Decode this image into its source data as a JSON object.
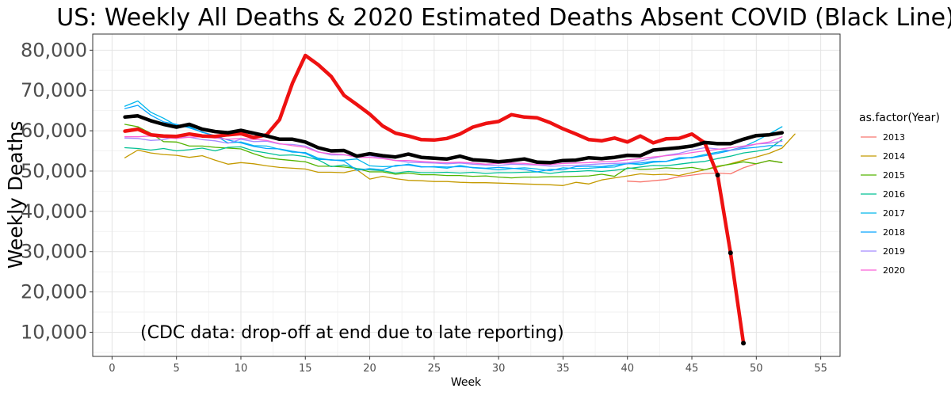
{
  "chart_data": {
    "type": "line",
    "title": "US: Weekly All Deaths & 2020 Estimated Deaths Absent COVID (Black Line)",
    "xlabel": "Week",
    "ylabel": "Weekly Deaths",
    "xlim": [
      -1.5,
      56.5
    ],
    "ylim": [
      4000,
      84000
    ],
    "x_ticks": [
      0,
      5,
      10,
      15,
      20,
      25,
      30,
      35,
      40,
      45,
      50,
      55
    ],
    "y_ticks": [
      10000,
      20000,
      30000,
      40000,
      50000,
      60000,
      70000,
      80000
    ],
    "y_tick_labels": [
      "10,000",
      "20,000",
      "30,000",
      "40,000",
      "50,000",
      "60,000",
      "70,000",
      "80,000"
    ],
    "grid": true,
    "legend": {
      "title": "as.factor(Year)",
      "position": "right"
    },
    "annotation": "(CDC data: drop-off at end due to late reporting)",
    "series": [
      {
        "name": "2013",
        "color": "#F8766D",
        "width": 1.3,
        "x": [
          40,
          41,
          42,
          43,
          44,
          45,
          46,
          47,
          48,
          49,
          50,
          51,
          52
        ],
        "y": [
          47500,
          47300,
          47600,
          47900,
          48600,
          49000,
          49400,
          49500,
          49300,
          50800,
          51800,
          52600,
          52100
        ]
      },
      {
        "name": "2014",
        "color": "#C49A00",
        "width": 1.3,
        "x": [
          1,
          2,
          3,
          4,
          5,
          6,
          7,
          8,
          9,
          10,
          11,
          12,
          13,
          14,
          15,
          16,
          17,
          18,
          19,
          20,
          21,
          22,
          23,
          24,
          25,
          26,
          27,
          28,
          29,
          30,
          31,
          32,
          33,
          34,
          35,
          36,
          37,
          38,
          39,
          40,
          41,
          42,
          43,
          44,
          45,
          46,
          47,
          48,
          49,
          50,
          51,
          52,
          53
        ],
        "y": [
          53300,
          55200,
          54500,
          54100,
          53900,
          53400,
          53800,
          52700,
          51700,
          52100,
          51800,
          51300,
          50900,
          50700,
          50500,
          49700,
          49700,
          49600,
          50300,
          48000,
          48700,
          48100,
          47700,
          47600,
          47400,
          47400,
          47200,
          47100,
          47100,
          47000,
          46900,
          46800,
          46700,
          46600,
          46400,
          47200,
          46800,
          47800,
          48300,
          48800,
          49300,
          49100,
          49200,
          48900,
          49600,
          50300,
          51000,
          51800,
          52700,
          53500,
          54400,
          55700,
          59200
        ]
      },
      {
        "name": "2015",
        "color": "#53B400",
        "width": 1.3,
        "x": [
          1,
          2,
          3,
          4,
          5,
          6,
          7,
          8,
          9,
          10,
          11,
          12,
          13,
          14,
          15,
          16,
          17,
          18,
          19,
          20,
          21,
          22,
          23,
          24,
          25,
          26,
          27,
          28,
          29,
          30,
          31,
          32,
          33,
          34,
          35,
          36,
          37,
          38,
          39,
          40,
          41,
          42,
          43,
          44,
          45,
          46,
          47,
          48,
          49,
          50,
          51,
          52
        ],
        "y": [
          61600,
          61000,
          59400,
          57300,
          57200,
          56200,
          56200,
          55900,
          55700,
          55500,
          54300,
          53300,
          52900,
          52600,
          52300,
          51200,
          51200,
          51000,
          50600,
          49800,
          49800,
          49200,
          49500,
          49100,
          49100,
          48900,
          48900,
          48700,
          48800,
          48500,
          48300,
          48500,
          48500,
          48600,
          48600,
          48700,
          48800,
          49200,
          48700,
          50800,
          50400,
          50500,
          50800,
          50600,
          50900,
          50300,
          51200,
          51700,
          52300,
          51800,
          52600,
          52100
        ]
      },
      {
        "name": "2016",
        "color": "#00C094",
        "width": 1.3,
        "x": [
          1,
          2,
          3,
          4,
          5,
          6,
          7,
          8,
          9,
          10,
          11,
          12,
          13,
          14,
          15,
          16,
          17,
          18,
          19,
          20,
          21,
          22,
          23,
          24,
          25,
          26,
          27,
          28,
          29,
          30,
          31,
          32,
          33,
          34,
          35,
          36,
          37,
          38,
          39,
          40,
          41,
          42,
          43,
          44,
          45,
          46,
          47,
          48,
          49,
          50,
          51,
          52
        ],
        "y": [
          55800,
          55600,
          55200,
          55600,
          55000,
          55300,
          55700,
          55000,
          55900,
          56000,
          55000,
          54500,
          53900,
          54000,
          53600,
          52800,
          51100,
          51500,
          50600,
          50300,
          50100,
          49500,
          49900,
          49600,
          49600,
          49700,
          49500,
          49700,
          49400,
          49600,
          49600,
          49700,
          49800,
          49400,
          49800,
          49900,
          50100,
          49900,
          50200,
          50600,
          51000,
          51400,
          51300,
          51700,
          52100,
          52400,
          53100,
          53700,
          54500,
          54900,
          55500,
          57800
        ]
      },
      {
        "name": "2017",
        "color": "#00B6EB",
        "width": 1.3,
        "x": [
          1,
          2,
          3,
          4,
          5,
          6,
          7,
          8,
          9,
          10,
          11,
          12,
          13,
          14,
          15,
          16,
          17,
          18,
          19,
          20,
          21,
          22,
          23,
          24,
          25,
          26,
          27,
          28,
          29,
          30,
          31,
          32,
          33,
          34,
          35,
          36,
          37,
          38,
          39,
          40,
          41,
          42,
          43,
          44,
          45,
          46,
          47,
          48,
          49,
          50,
          51,
          52
        ],
        "y": [
          66100,
          67400,
          64600,
          63100,
          61300,
          61000,
          59600,
          58800,
          57000,
          57200,
          56300,
          56200,
          55400,
          54700,
          54600,
          53200,
          52700,
          52700,
          53000,
          51300,
          51100,
          51200,
          51700,
          51100,
          51000,
          50700,
          51400,
          50800,
          50600,
          50300,
          50600,
          50800,
          50500,
          50100,
          50800,
          50600,
          50700,
          50900,
          51000,
          51900,
          51600,
          52200,
          52400,
          53000,
          53400,
          54100,
          54700,
          55200,
          56000,
          57500,
          59200,
          61000
        ]
      },
      {
        "name": "2018",
        "color": "#06A4FF",
        "width": 1.3,
        "x": [
          1,
          2,
          3,
          4,
          5,
          6,
          7,
          8,
          9,
          10,
          11,
          12,
          13,
          14,
          15,
          16,
          17,
          18,
          19,
          20,
          21,
          22,
          23,
          24,
          25,
          26,
          27,
          28,
          29,
          30,
          31,
          32,
          33,
          34,
          35,
          36,
          37,
          38,
          39,
          40,
          41,
          42,
          43,
          44,
          45,
          46,
          47,
          48,
          49,
          50,
          51,
          52
        ],
        "y": [
          65500,
          66300,
          63900,
          62200,
          61600,
          60700,
          59700,
          58700,
          57700,
          57000,
          56100,
          55600,
          55500,
          54900,
          54400,
          52900,
          52800,
          52500,
          50200,
          50600,
          50300,
          51400,
          51500,
          51000,
          51100,
          51000,
          51100,
          50900,
          50700,
          50900,
          50700,
          50400,
          49800,
          50400,
          50300,
          51100,
          51200,
          51100,
          51500,
          51800,
          52000,
          52400,
          52400,
          53300,
          53300,
          53800,
          54400,
          55100,
          55600,
          55900,
          56300,
          56300
        ]
      },
      {
        "name": "2019",
        "color": "#A58AFF",
        "width": 1.3,
        "x": [
          1,
          2,
          3,
          4,
          5,
          6,
          7,
          8,
          9,
          10,
          11,
          12,
          13,
          14,
          15,
          16,
          17,
          18,
          19,
          20,
          21,
          22,
          23,
          24,
          25,
          26,
          27,
          28,
          29,
          30,
          31,
          32,
          33,
          34,
          35,
          36,
          37,
          38,
          39,
          40,
          41,
          42,
          43,
          44,
          45,
          46,
          47,
          48,
          49,
          50,
          51,
          52
        ],
        "y": [
          58200,
          58100,
          57600,
          57800,
          58500,
          58400,
          57800,
          57500,
          56900,
          57900,
          57300,
          57400,
          56700,
          56600,
          56200,
          54800,
          54000,
          54000,
          53700,
          53800,
          53200,
          52600,
          52200,
          52100,
          52000,
          51800,
          52000,
          51700,
          51500,
          51400,
          51700,
          51600,
          51500,
          51200,
          51300,
          51400,
          51600,
          51800,
          51900,
          52000,
          52500,
          53200,
          53900,
          54400,
          55200,
          55800,
          55500,
          55100,
          55900,
          56700,
          56900,
          57400
        ]
      },
      {
        "name": "2020",
        "color": "#FB61D7",
        "width": 1.3,
        "x": [
          1,
          2,
          3,
          4,
          5,
          6,
          7,
          8,
          9,
          10,
          11,
          12,
          13,
          14,
          15,
          16,
          17,
          18,
          19,
          20,
          21,
          22,
          23,
          24,
          25,
          26,
          27,
          28,
          29,
          30,
          31,
          32,
          33,
          34,
          35,
          36,
          37,
          38,
          39,
          40,
          41,
          42,
          43,
          44,
          45,
          46,
          47,
          48,
          49,
          50,
          51,
          52
        ],
        "y": [
          58500,
          58500,
          58700,
          58300,
          58100,
          58400,
          58500,
          58200,
          57900,
          58100,
          57900,
          57600,
          56800,
          56300,
          55900,
          54700,
          54300,
          54100,
          53400,
          53400,
          53100,
          52600,
          52600,
          52400,
          52200,
          52100,
          52200,
          52000,
          51700,
          51900,
          52000,
          51900,
          51600,
          51600,
          51900,
          52000,
          52100,
          52300,
          52400,
          52800,
          53100,
          53500,
          53800,
          54100,
          54600,
          55000,
          55400,
          55800,
          56200,
          56700,
          57200,
          58500
        ]
      },
      {
        "name": "All Deaths",
        "color": "#EE1111",
        "width": 4.5,
        "x": [
          1,
          2,
          3,
          4,
          5,
          6,
          7,
          8,
          9,
          10,
          11,
          12,
          13,
          14,
          15,
          16,
          17,
          18,
          19,
          20,
          21,
          22,
          23,
          24,
          25,
          26,
          27,
          28,
          29,
          30,
          31,
          32,
          33,
          34,
          35,
          36,
          37,
          38,
          39,
          40,
          41,
          42,
          43,
          44,
          45,
          46,
          47,
          48,
          49
        ],
        "y": [
          59900,
          60400,
          59000,
          58700,
          58600,
          59200,
          58700,
          58600,
          59000,
          59300,
          58300,
          59000,
          62800,
          71800,
          78700,
          76400,
          73500,
          68800,
          66500,
          64100,
          61200,
          59400,
          58700,
          57800,
          57700,
          58100,
          59200,
          60900,
          61800,
          62300,
          64000,
          63400,
          63200,
          62000,
          60500,
          59200,
          57800,
          57500,
          58200,
          57200,
          58700,
          57000,
          58000,
          58100,
          59200,
          57000,
          49000,
          29700,
          7300
        ],
        "markers_from_x": 47
      },
      {
        "name": "Estimated Deaths Absent COVID",
        "color": "#000000",
        "width": 4.5,
        "x": [
          1,
          2,
          3,
          4,
          5,
          6,
          7,
          8,
          9,
          10,
          11,
          12,
          13,
          14,
          15,
          16,
          17,
          18,
          19,
          20,
          21,
          22,
          23,
          24,
          25,
          26,
          27,
          28,
          29,
          30,
          31,
          32,
          33,
          34,
          35,
          36,
          37,
          38,
          39,
          40,
          41,
          42,
          43,
          44,
          45,
          46,
          47,
          48,
          49,
          50,
          51,
          52
        ],
        "y": [
          63400,
          63700,
          62500,
          61600,
          60900,
          61600,
          60400,
          59800,
          59500,
          60100,
          59400,
          58700,
          57900,
          57900,
          57200,
          55800,
          55000,
          55100,
          53700,
          54300,
          53800,
          53500,
          54200,
          53400,
          53200,
          53000,
          53700,
          52800,
          52600,
          52300,
          52600,
          53000,
          52200,
          52100,
          52600,
          52700,
          53300,
          53100,
          53400,
          53900,
          53800,
          55200,
          55500,
          55800,
          56200,
          57100,
          56800,
          56800,
          57900,
          58800,
          59000,
          59500
        ]
      }
    ]
  }
}
